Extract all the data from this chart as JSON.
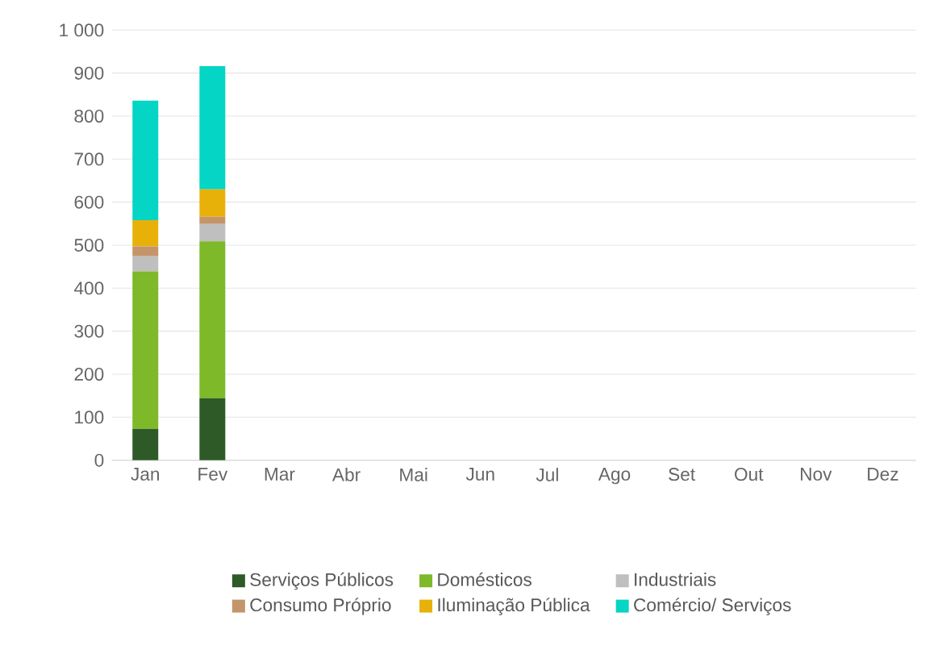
{
  "chart_data": {
    "type": "bar",
    "stacked": true,
    "categories": [
      "Jan",
      "Fev",
      "Mar",
      "Abr",
      "Mai",
      "Jun",
      "Jul",
      "Ago",
      "Set",
      "Out",
      "Nov",
      "Dez"
    ],
    "series": [
      {
        "name": "Serviços Públicos",
        "color": "#2d5a27",
        "values": [
          73,
          144,
          null,
          null,
          null,
          null,
          null,
          null,
          null,
          null,
          null,
          null
        ]
      },
      {
        "name": "Domésticos",
        "color": "#7db928",
        "values": [
          366,
          365,
          null,
          null,
          null,
          null,
          null,
          null,
          null,
          null,
          null,
          null
        ]
      },
      {
        "name": "Industriais",
        "color": "#bfbfbf",
        "values": [
          35,
          40,
          null,
          null,
          null,
          null,
          null,
          null,
          null,
          null,
          null,
          null
        ]
      },
      {
        "name": "Consumo Próprio",
        "color": "#c4956a",
        "values": [
          23,
          17,
          null,
          null,
          null,
          null,
          null,
          null,
          null,
          null,
          null,
          null
        ]
      },
      {
        "name": "Iluminação Pública",
        "color": "#e8b10a",
        "values": [
          61,
          64,
          null,
          null,
          null,
          null,
          null,
          null,
          null,
          null,
          null,
          null
        ]
      },
      {
        "name": "Comércio/ Serviços",
        "color": "#05d5c4",
        "values": [
          278,
          286,
          null,
          null,
          null,
          null,
          null,
          null,
          null,
          null,
          null,
          null
        ]
      }
    ],
    "ylim": [
      0,
      1000
    ],
    "yticks": [
      0,
      100,
      200,
      300,
      400,
      500,
      600,
      700,
      800,
      900,
      {
        "value": 1000,
        "label": "1 000"
      }
    ],
    "grid": "y",
    "legend": "bottom"
  }
}
